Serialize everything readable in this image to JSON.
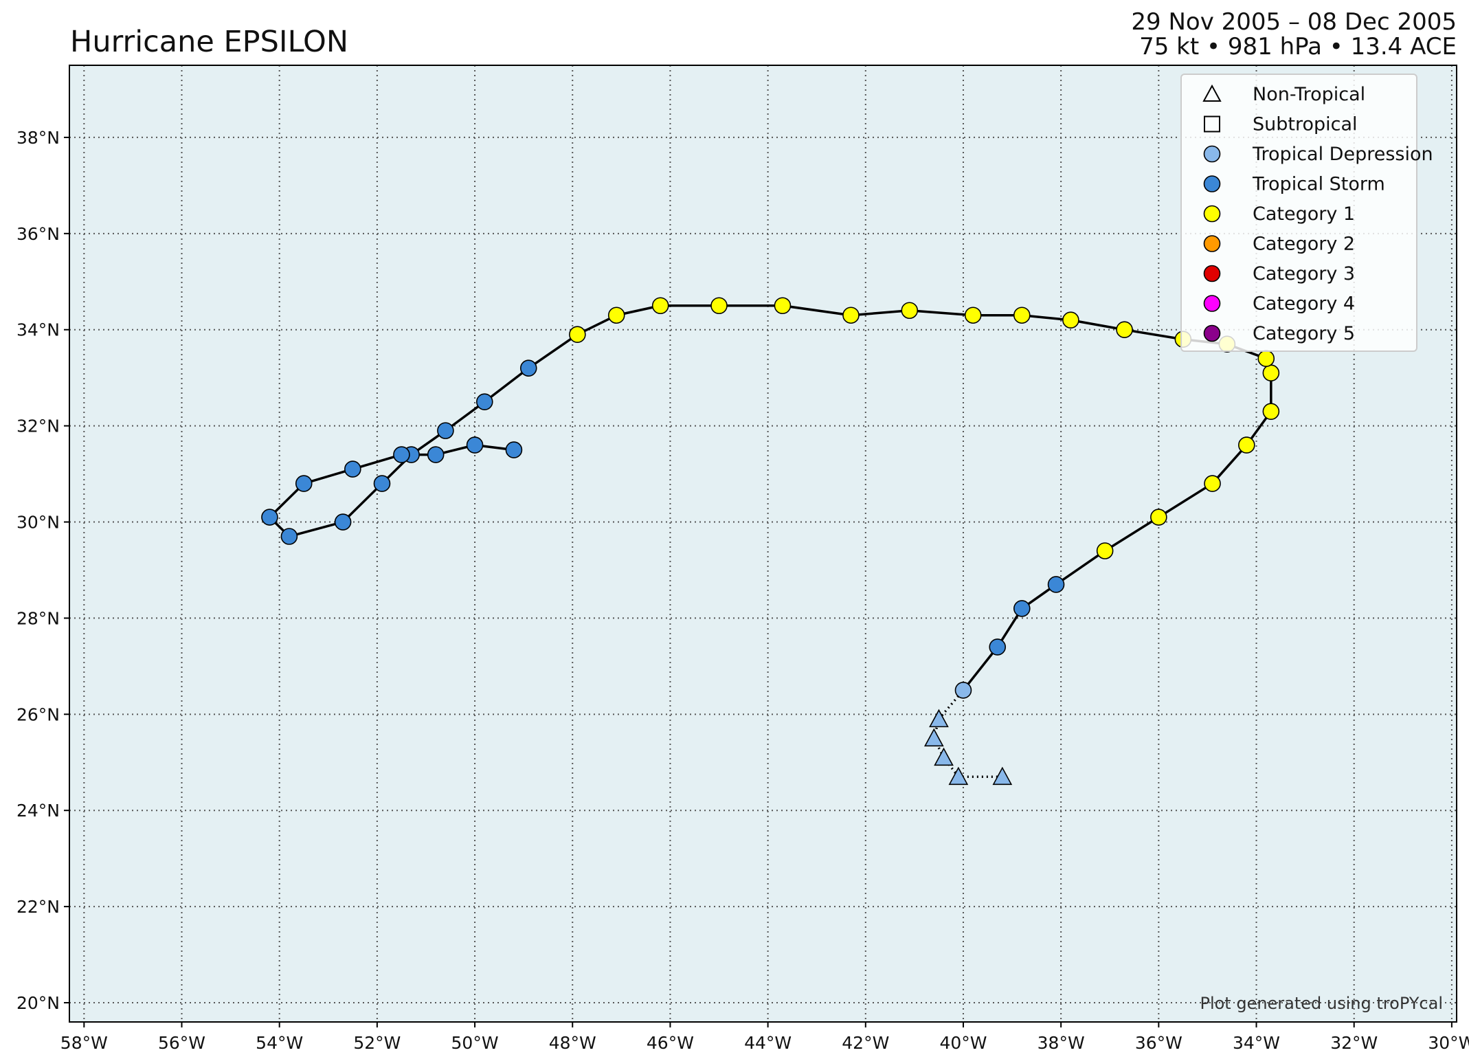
{
  "title": "Hurricane EPSILON",
  "date_range": "29 Nov 2005 – 08 Dec 2005",
  "stats": "75 kt • 981 hPa • 13.4 ACE",
  "credit": "Plot generated using troPYcal",
  "colors": {
    "ocean": "#e4f0f3",
    "grid": "#555555",
    "track": "#000000",
    "tropical_depression": "#89b8ea",
    "tropical_storm": "#3b87d6",
    "category_1": "#ffff00",
    "category_2": "#ff9a00",
    "category_3": "#e00000",
    "category_4": "#ff00ff",
    "category_5": "#8b008b"
  },
  "chart_data": {
    "type": "scatter",
    "xlim": [
      -58.3,
      -29.9
    ],
    "ylim": [
      19.6,
      39.5
    ],
    "x_ticks": [
      -58,
      -56,
      -54,
      -52,
      -50,
      -48,
      -46,
      -44,
      -42,
      -40,
      -38,
      -36,
      -34,
      -32,
      -30
    ],
    "x_tick_labels": [
      "58°W",
      "56°W",
      "54°W",
      "52°W",
      "50°W",
      "48°W",
      "46°W",
      "44°W",
      "42°W",
      "40°W",
      "38°W",
      "36°W",
      "34°W",
      "32°W",
      "30°W"
    ],
    "y_ticks": [
      20,
      22,
      24,
      26,
      28,
      30,
      32,
      34,
      36,
      38
    ],
    "y_tick_labels": [
      "20°N",
      "22°N",
      "24°N",
      "26°N",
      "28°N",
      "30°N",
      "32°N",
      "34°N",
      "36°N",
      "38°N"
    ],
    "grid": true,
    "legend_position": "top-right",
    "legend": [
      {
        "label": "Non-Tropical",
        "marker": "triangle",
        "color": "none"
      },
      {
        "label": "Subtropical",
        "marker": "square",
        "color": "none"
      },
      {
        "label": "Tropical Depression",
        "marker": "circle",
        "color": "#89b8ea"
      },
      {
        "label": "Tropical Storm",
        "marker": "circle",
        "color": "#3b87d6"
      },
      {
        "label": "Category 1",
        "marker": "circle",
        "color": "#ffff00"
      },
      {
        "label": "Category 2",
        "marker": "circle",
        "color": "#ff9a00"
      },
      {
        "label": "Category 3",
        "marker": "circle",
        "color": "#e00000"
      },
      {
        "label": "Category 4",
        "marker": "circle",
        "color": "#ff00ff"
      },
      {
        "label": "Category 5",
        "marker": "circle",
        "color": "#8b008b"
      }
    ],
    "track": [
      {
        "lon": -39.2,
        "lat": 24.7,
        "type": "non-tropical",
        "cat": "td"
      },
      {
        "lon": -40.1,
        "lat": 24.7,
        "type": "non-tropical",
        "cat": "td"
      },
      {
        "lon": -40.4,
        "lat": 25.1,
        "type": "non-tropical",
        "cat": "td"
      },
      {
        "lon": -40.6,
        "lat": 25.5,
        "type": "non-tropical",
        "cat": "td"
      },
      {
        "lon": -40.5,
        "lat": 25.9,
        "type": "non-tropical",
        "cat": "td"
      },
      {
        "lon": -40.0,
        "lat": 26.5,
        "type": "tropical",
        "cat": "td"
      },
      {
        "lon": -39.3,
        "lat": 27.4,
        "type": "tropical",
        "cat": "ts"
      },
      {
        "lon": -38.8,
        "lat": 28.2,
        "type": "tropical",
        "cat": "ts"
      },
      {
        "lon": -38.1,
        "lat": 28.7,
        "type": "tropical",
        "cat": "ts"
      },
      {
        "lon": -37.1,
        "lat": 29.4,
        "type": "tropical",
        "cat": "c1"
      },
      {
        "lon": -36.0,
        "lat": 30.1,
        "type": "tropical",
        "cat": "c1"
      },
      {
        "lon": -34.9,
        "lat": 30.8,
        "type": "tropical",
        "cat": "c1"
      },
      {
        "lon": -34.2,
        "lat": 31.6,
        "type": "tropical",
        "cat": "c1"
      },
      {
        "lon": -33.7,
        "lat": 32.3,
        "type": "tropical",
        "cat": "c1"
      },
      {
        "lon": -33.7,
        "lat": 33.1,
        "type": "tropical",
        "cat": "c1"
      },
      {
        "lon": -33.8,
        "lat": 33.4,
        "type": "tropical",
        "cat": "c1"
      },
      {
        "lon": -34.6,
        "lat": 33.7,
        "type": "tropical",
        "cat": "c1"
      },
      {
        "lon": -35.5,
        "lat": 33.8,
        "type": "tropical",
        "cat": "c1"
      },
      {
        "lon": -36.7,
        "lat": 34.0,
        "type": "tropical",
        "cat": "c1"
      },
      {
        "lon": -37.8,
        "lat": 34.2,
        "type": "tropical",
        "cat": "c1"
      },
      {
        "lon": -38.8,
        "lat": 34.3,
        "type": "tropical",
        "cat": "c1"
      },
      {
        "lon": -39.8,
        "lat": 34.3,
        "type": "tropical",
        "cat": "c1"
      },
      {
        "lon": -41.1,
        "lat": 34.4,
        "type": "tropical",
        "cat": "c1"
      },
      {
        "lon": -42.3,
        "lat": 34.3,
        "type": "tropical",
        "cat": "c1"
      },
      {
        "lon": -43.7,
        "lat": 34.5,
        "type": "tropical",
        "cat": "c1"
      },
      {
        "lon": -45.0,
        "lat": 34.5,
        "type": "tropical",
        "cat": "c1"
      },
      {
        "lon": -46.2,
        "lat": 34.5,
        "type": "tropical",
        "cat": "c1"
      },
      {
        "lon": -47.1,
        "lat": 34.3,
        "type": "tropical",
        "cat": "c1"
      },
      {
        "lon": -47.9,
        "lat": 33.9,
        "type": "tropical",
        "cat": "c1"
      },
      {
        "lon": -48.9,
        "lat": 33.2,
        "type": "tropical",
        "cat": "ts"
      },
      {
        "lon": -49.8,
        "lat": 32.5,
        "type": "tropical",
        "cat": "ts"
      },
      {
        "lon": -50.6,
        "lat": 31.9,
        "type": "tropical",
        "cat": "ts"
      },
      {
        "lon": -51.3,
        "lat": 31.4,
        "type": "tropical",
        "cat": "ts"
      },
      {
        "lon": -51.9,
        "lat": 30.8,
        "type": "tropical",
        "cat": "ts"
      },
      {
        "lon": -52.7,
        "lat": 30.0,
        "type": "tropical",
        "cat": "ts"
      },
      {
        "lon": -53.8,
        "lat": 29.7,
        "type": "tropical",
        "cat": "ts"
      },
      {
        "lon": -54.2,
        "lat": 30.1,
        "type": "tropical",
        "cat": "ts"
      },
      {
        "lon": -53.5,
        "lat": 30.8,
        "type": "tropical",
        "cat": "ts"
      },
      {
        "lon": -52.5,
        "lat": 31.1,
        "type": "tropical",
        "cat": "ts"
      },
      {
        "lon": -51.5,
        "lat": 31.4,
        "type": "tropical",
        "cat": "ts"
      },
      {
        "lon": -50.8,
        "lat": 31.4,
        "type": "tropical",
        "cat": "ts"
      },
      {
        "lon": -50.0,
        "lat": 31.6,
        "type": "tropical",
        "cat": "ts"
      },
      {
        "lon": -49.2,
        "lat": 31.5,
        "type": "tropical",
        "cat": "ts"
      }
    ]
  }
}
